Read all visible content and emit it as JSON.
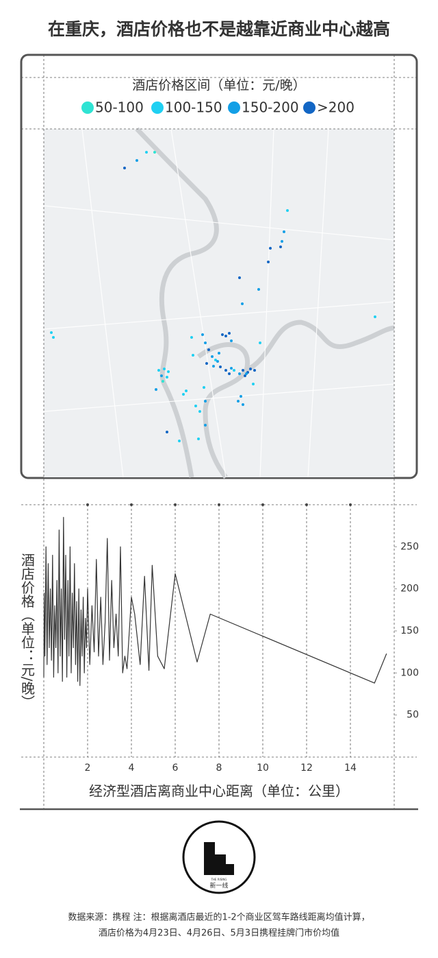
{
  "title": "在重庆，酒店价格也不是越靠近商业中心越高",
  "map": {
    "legend_title": "酒店价格区间（单位：元/晚）",
    "legend": [
      {
        "label": "50-100",
        "color": "#2fe3d3"
      },
      {
        "label": "100-150",
        "color": "#1fd0f2"
      },
      {
        "label": "150-200",
        "color": "#139fe6"
      },
      {
        "label": ">200",
        "color": "#1266c4"
      }
    ]
  },
  "chart_data": {
    "type": "line",
    "x": [
      0,
      0.02,
      0.05,
      0.1,
      0.15,
      0.2,
      0.25,
      0.3,
      0.35,
      0.4,
      0.45,
      0.5,
      0.55,
      0.6,
      0.65,
      0.7,
      0.75,
      0.8,
      0.85,
      0.9,
      0.95,
      1.0,
      1.05,
      1.1,
      1.15,
      1.2,
      1.25,
      1.3,
      1.35,
      1.4,
      1.45,
      1.5,
      1.55,
      1.6,
      1.65,
      1.7,
      1.75,
      1.8,
      1.85,
      1.9,
      1.95,
      2.0,
      2.1,
      2.2,
      2.3,
      2.4,
      2.5,
      2.6,
      2.7,
      2.8,
      2.9,
      3.0,
      3.1,
      3.2,
      3.3,
      3.4,
      3.5,
      3.6,
      3.7,
      3.8,
      4.0,
      4.15,
      4.4,
      4.6,
      4.8,
      4.95,
      5.2,
      5.5,
      6.0,
      7.0,
      7.6,
      15.1,
      15.65
    ],
    "values": [
      95,
      195,
      120,
      250,
      110,
      230,
      130,
      200,
      115,
      240,
      95,
      180,
      130,
      210,
      100,
      270,
      120,
      200,
      90,
      285,
      140,
      240,
      95,
      210,
      120,
      250,
      100,
      195,
      130,
      230,
      110,
      185,
      90,
      200,
      85,
      175,
      120,
      190,
      100,
      165,
      130,
      200,
      110,
      180,
      125,
      235,
      120,
      190,
      110,
      160,
      260,
      115,
      210,
      130,
      170,
      120,
      250,
      100,
      120,
      105,
      190,
      170,
      110,
      215,
      103,
      228,
      120,
      105,
      218,
      113,
      170,
      88,
      123
    ],
    "color": "#333333",
    "xlim": [
      0,
      16
    ],
    "xticks": [
      2,
      4,
      6,
      8,
      10,
      12,
      14
    ],
    "ylim": [
      0,
      300
    ],
    "yticks": [
      50,
      100,
      150,
      200,
      250
    ],
    "xlabel": "经济型酒店离商业中心距离（单位：公里）",
    "ylabel": "酒店价格（单位：元/晚）"
  },
  "logo": {
    "text": "新一线",
    "subtext": "THE RISING"
  },
  "footer": {
    "lines": [
      "数据来源：携程 注：根据离酒店最近的1-2个商业区驾车路线距离均值计算，",
      "酒店价格为4月23日、4月26日、5月3日携程挂牌门市价均值"
    ]
  }
}
